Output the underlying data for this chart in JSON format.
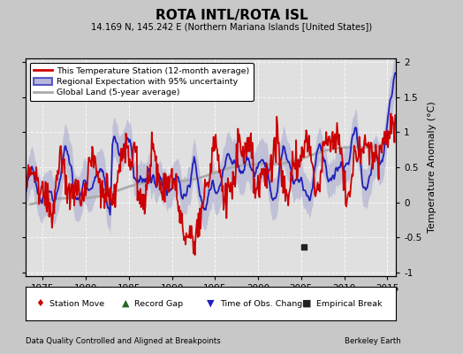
{
  "title": "ROTA INTL/ROTA ISL",
  "subtitle": "14.169 N, 145.242 E (Northern Mariana Islands [United States])",
  "ylabel": "Temperature Anomaly (°C)",
  "xlim": [
    1973,
    2016
  ],
  "ylim": [
    -1.05,
    2.05
  ],
  "yticks": [
    -1,
    -0.5,
    0,
    0.5,
    1,
    1.5,
    2
  ],
  "xticks": [
    1975,
    1980,
    1985,
    1990,
    1995,
    2000,
    2005,
    2010,
    2015
  ],
  "bg_color": "#c8c8c8",
  "plot_bg_color": "#e0e0e0",
  "grid_color": "#ffffff",
  "station_line_color": "#cc0000",
  "regional_line_color": "#2020bb",
  "regional_fill_color": "#9999cc",
  "regional_fill_alpha": 0.45,
  "global_line_color": "#aaaaaa",
  "empirical_break_x": 2005.3,
  "empirical_break_y": -0.63,
  "footer_left": "Data Quality Controlled and Aligned at Breakpoints",
  "footer_right": "Berkeley Earth",
  "legend_entries": [
    "This Temperature Station (12-month average)",
    "Regional Expectation with 95% uncertainty",
    "Global Land (5-year average)"
  ]
}
